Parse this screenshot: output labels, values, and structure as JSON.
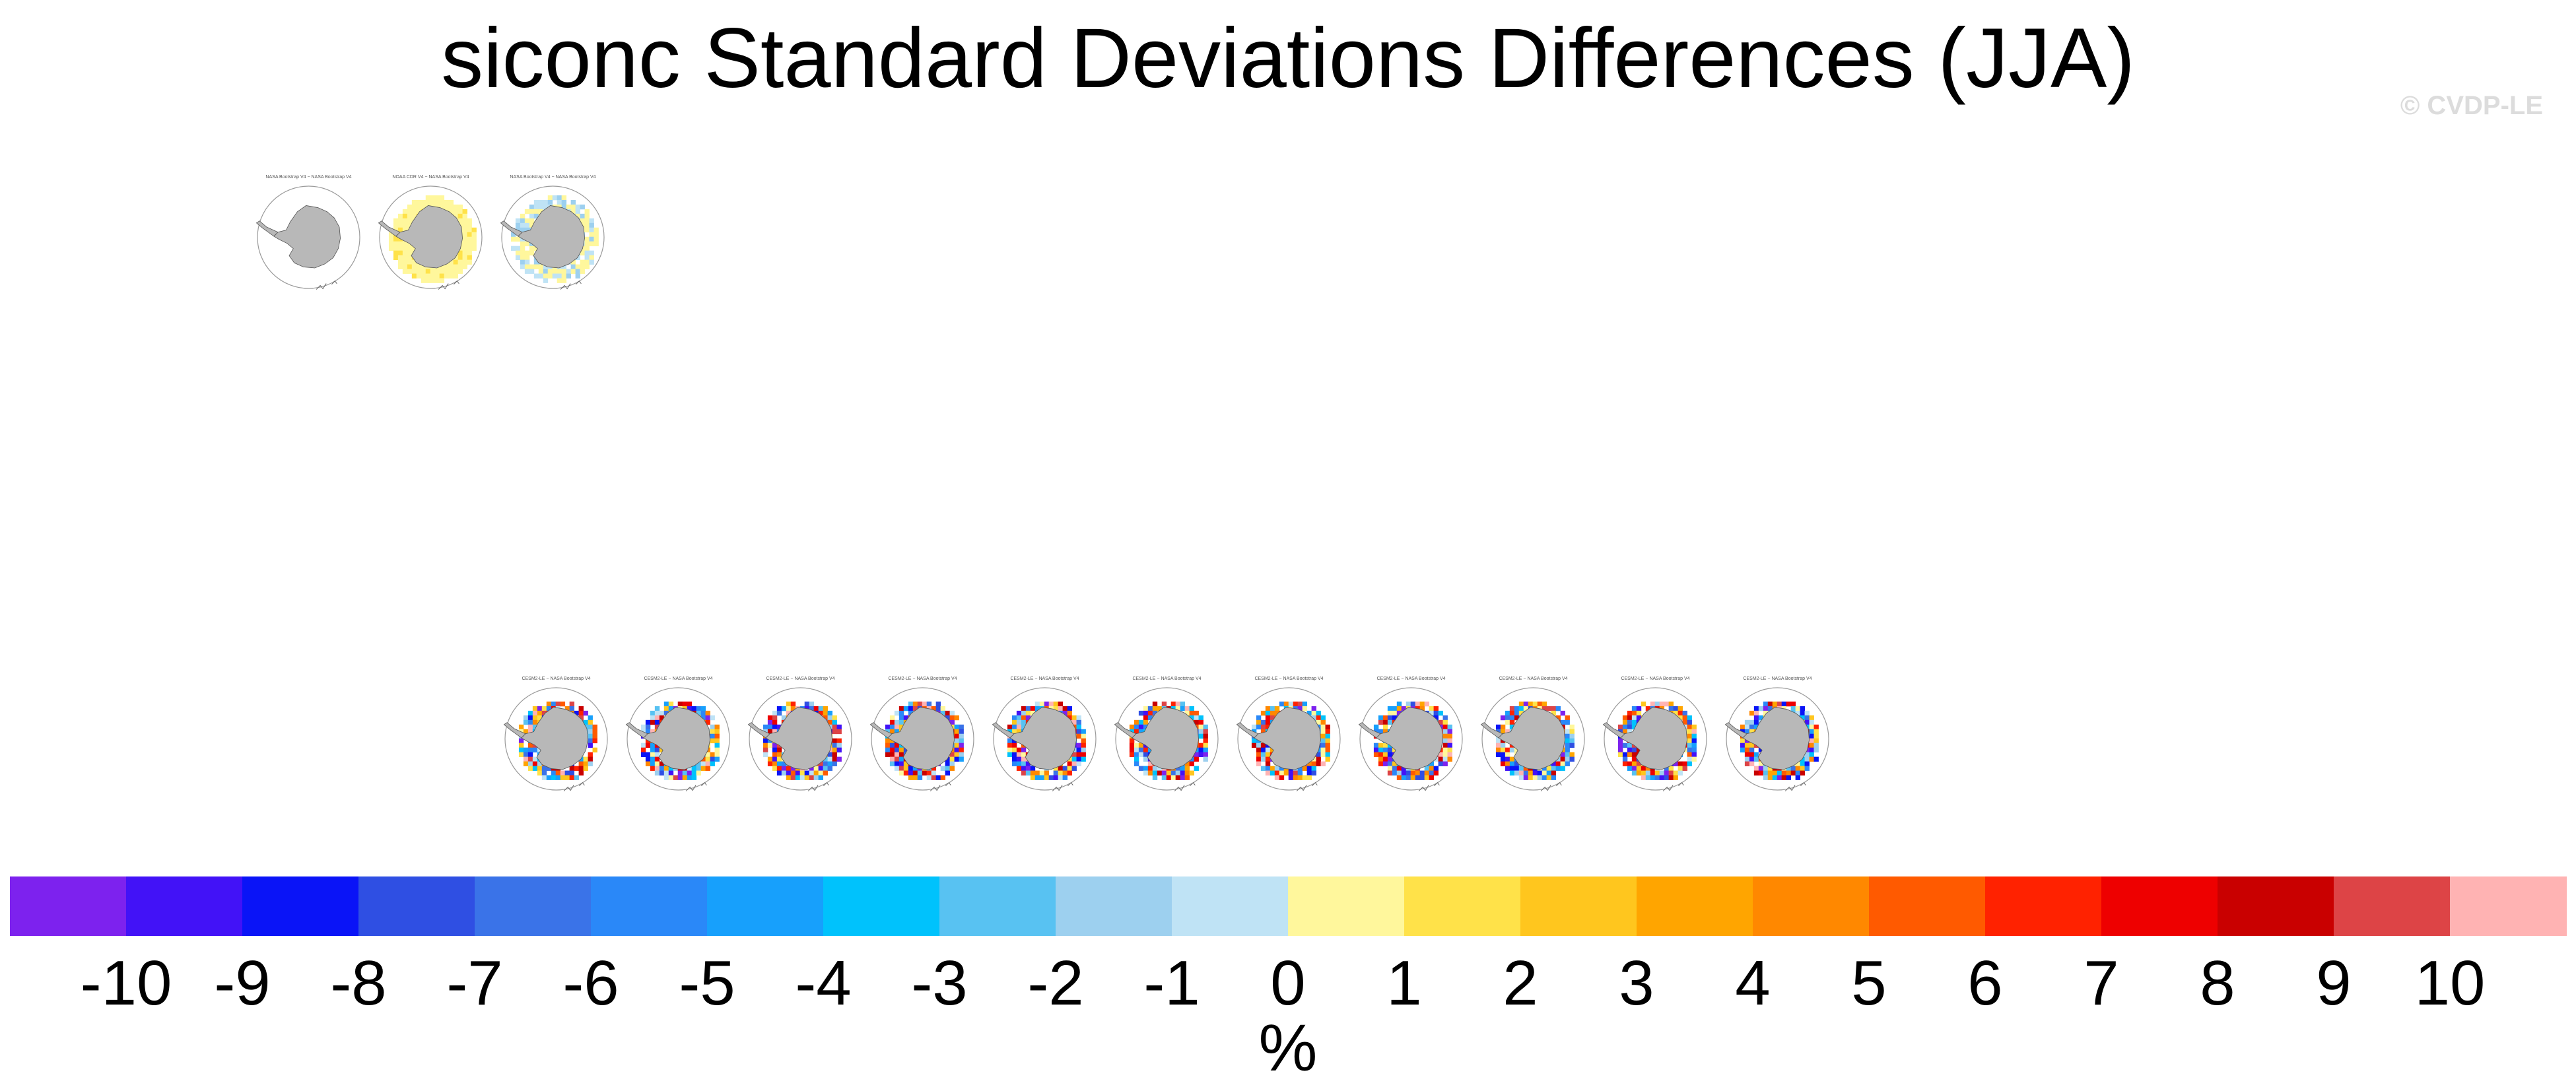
{
  "chart_data": {
    "type": "heatmap",
    "title": "siconc Standard Deviations Differences (JJA)",
    "watermark": "© CVDP-LE",
    "colorbar": {
      "units": "%",
      "tick_labels": [
        "-10",
        "-9",
        "-8",
        "-7",
        "-6",
        "-5",
        "-4",
        "-3",
        "-2",
        "-1",
        "0",
        "1",
        "2",
        "3",
        "4",
        "5",
        "6",
        "7",
        "8",
        "9",
        "10"
      ],
      "levels": [
        -10,
        -9,
        -8,
        -7,
        -6,
        -5,
        -4,
        -3,
        -2,
        -1,
        0,
        1,
        2,
        3,
        4,
        5,
        6,
        7,
        8,
        9,
        10
      ],
      "colors": [
        "#7d22ee",
        "#4212f7",
        "#0a14f7",
        "#2f4fe3",
        "#3a73e8",
        "#2a88f8",
        "#17a0fc",
        "#00c2fc",
        "#58c2f2",
        "#9dd0ef",
        "#bfe3f5",
        "#fff79c",
        "#ffe249",
        "#ffc61e",
        "#ffa500",
        "#ff8800",
        "#ff5a00",
        "#ff2200",
        "#ee0000",
        "#c90000",
        "#dd4446",
        "#ffb3b3"
      ]
    },
    "panels": {
      "row1": [
        {
          "title": "NASA Bootstrap V4 − NASA Bootstrap V4",
          "pattern": "empty"
        },
        {
          "title": "NOAA CDR V4 − NASA Bootstrap V4",
          "pattern": "yellow"
        },
        {
          "title": "NASA Bootstrap V4 − NASA Bootstrap V4",
          "pattern": "light"
        }
      ],
      "row2": [
        {
          "title": "CESM2-LE − NASA Bootstrap V4",
          "pattern": "mixed"
        },
        {
          "title": "CESM2-LE − NASA Bootstrap V4",
          "pattern": "mixed"
        },
        {
          "title": "CESM2-LE − NASA Bootstrap V4",
          "pattern": "mixed"
        },
        {
          "title": "CESM2-LE − NASA Bootstrap V4",
          "pattern": "mixed"
        },
        {
          "title": "CESM2-LE − NASA Bootstrap V4",
          "pattern": "mixed"
        },
        {
          "title": "CESM2-LE − NASA Bootstrap V4",
          "pattern": "mixed"
        },
        {
          "title": "CESM2-LE − NASA Bootstrap V4",
          "pattern": "mixed"
        },
        {
          "title": "CESM2-LE − NASA Bootstrap V4",
          "pattern": "mixed"
        },
        {
          "title": "CESM2-LE − NASA Bootstrap V4",
          "pattern": "mixed"
        },
        {
          "title": "CESM2-LE − NASA Bootstrap V4",
          "pattern": "mixed"
        },
        {
          "title": "CESM2-LE − NASA Bootstrap V4",
          "pattern": "mixed"
        }
      ]
    }
  }
}
